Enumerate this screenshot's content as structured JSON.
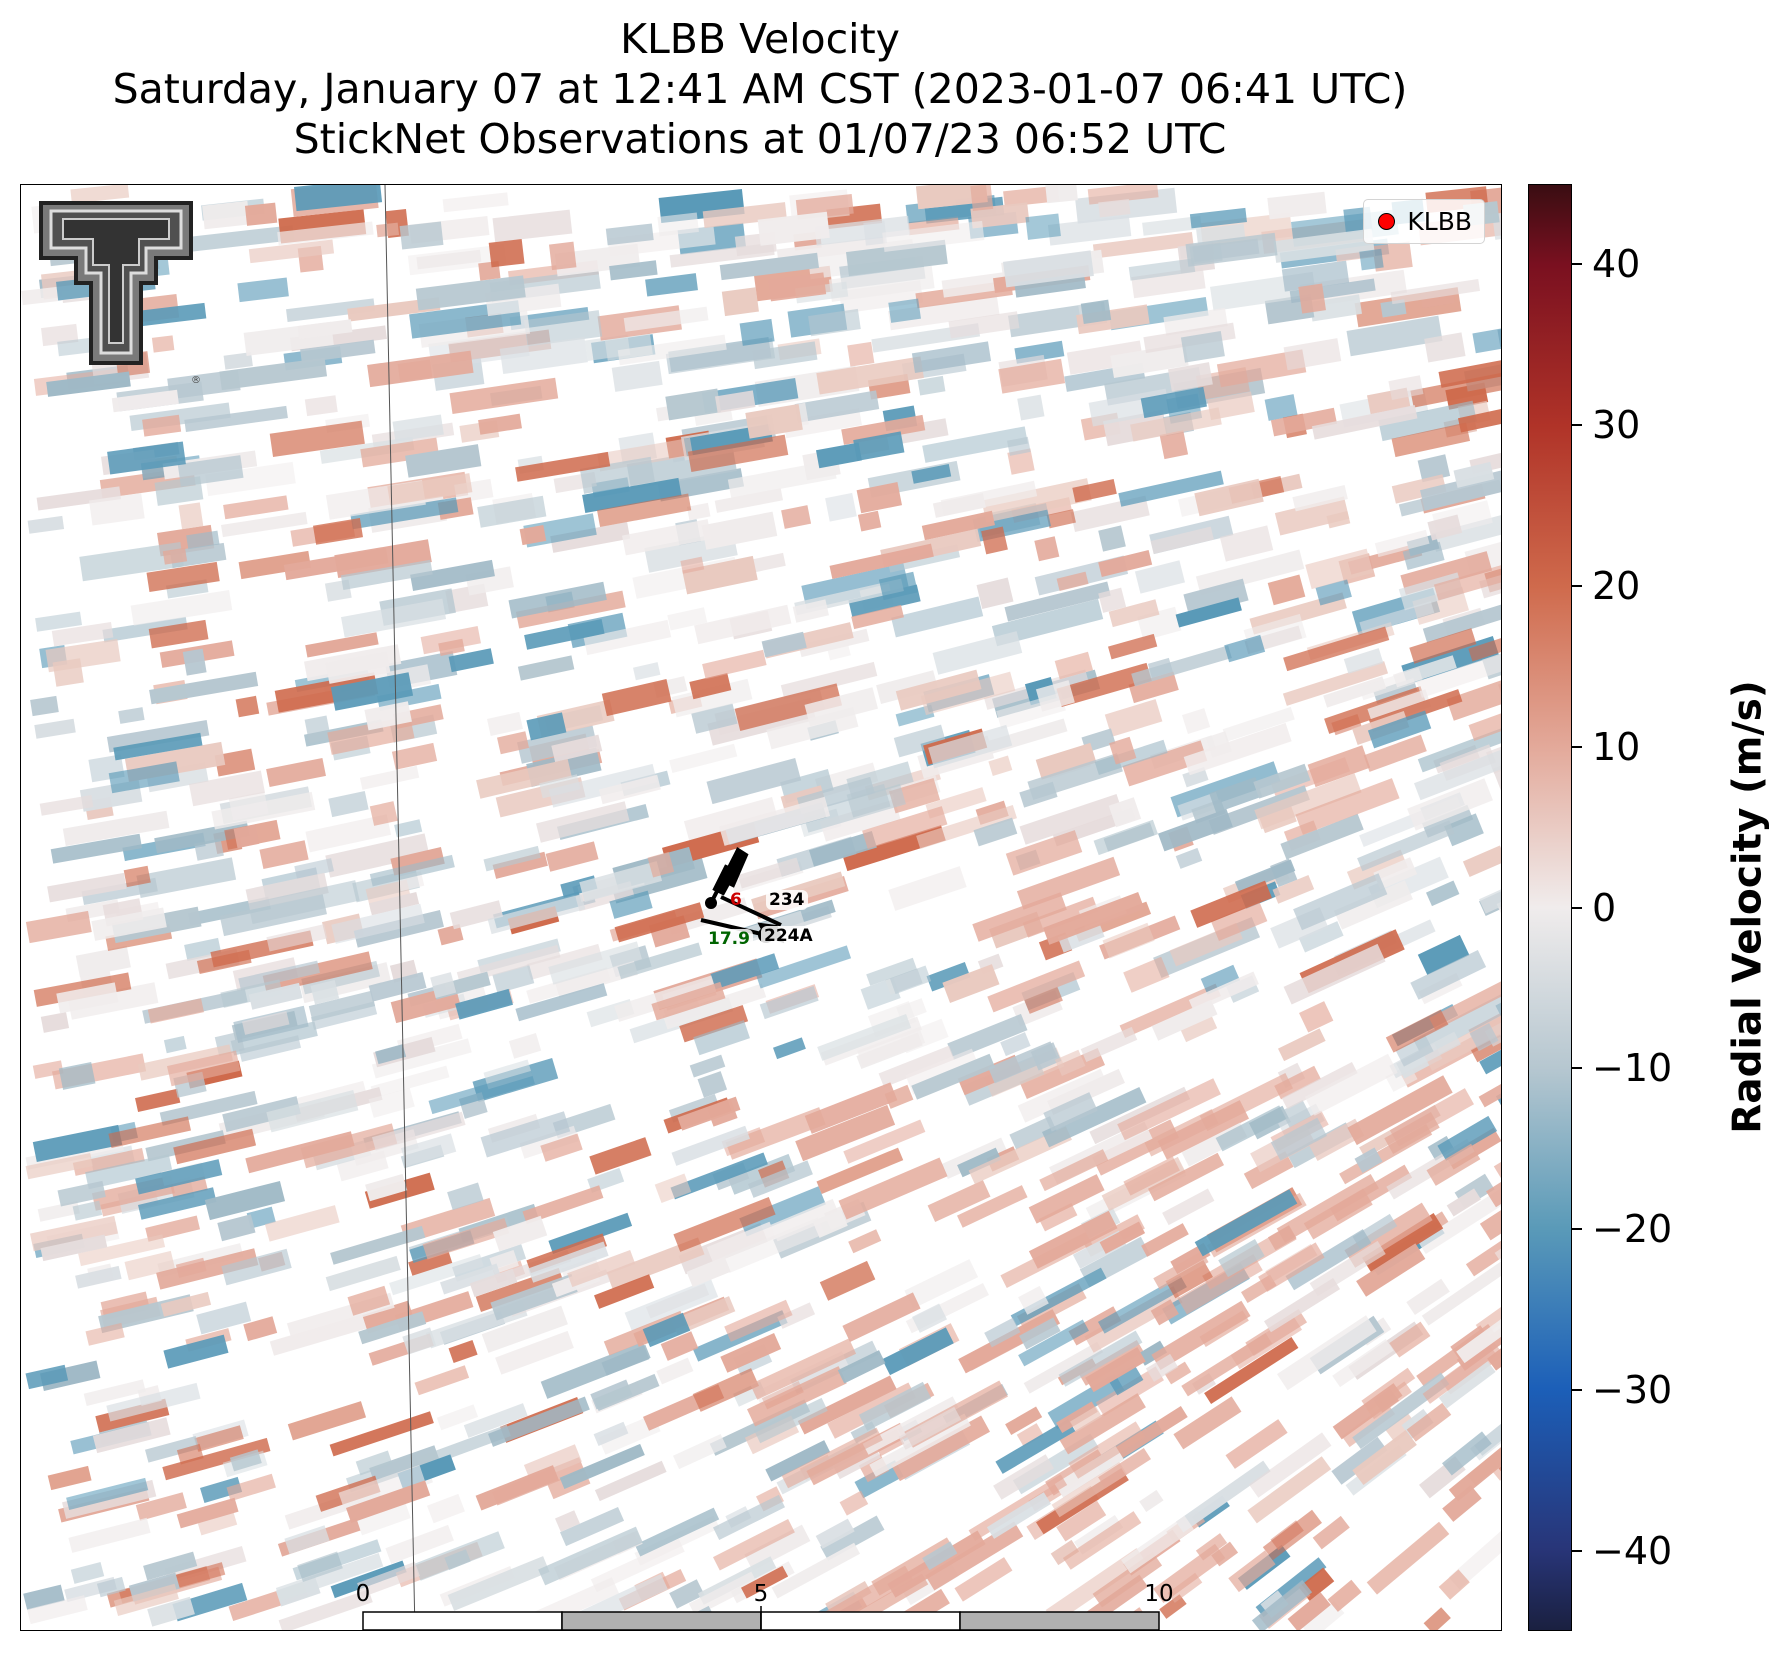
{
  "titles": {
    "line1": "KLBB Velocity",
    "line2": "Saturday, January 07 at 12:41 AM CST (2023-01-07 06:41 UTC)",
    "line3": "StickNet Observations at 01/07/23 06:52 UTC"
  },
  "legend": {
    "label": "KLBB",
    "marker_color": "#ff0000"
  },
  "logo": {
    "name": "Texas Tech Double T logo"
  },
  "stations": [
    {
      "id": "234",
      "value": "6",
      "value_color": "#cc0000"
    },
    {
      "id": "224A",
      "value": "17.9",
      "value_color": "#006400"
    }
  ],
  "scalebar": {
    "tick_labels": [
      "0",
      "5",
      "10"
    ],
    "unit": "km"
  },
  "colorbar": {
    "title": "Radial Velocity (m/s)",
    "range": [
      -45,
      45
    ],
    "ticks": [
      40,
      30,
      20,
      10,
      0,
      -10,
      -20,
      -30,
      -40
    ],
    "tick_labels": [
      "40",
      "30",
      "20",
      "10",
      "0",
      "−10",
      "−20",
      "−30",
      "−40"
    ],
    "colors": {
      "max": "#3a0d12",
      "pos_40": "#7a1020",
      "pos_30": "#b03328",
      "pos_20": "#cf6a4c",
      "pos_10": "#e3a99a",
      "zero": "#f0ecec",
      "neg_10": "#b6c7d0",
      "neg_20": "#5a9ab8",
      "neg_30": "#1c5fb8",
      "neg_40": "#283578",
      "min": "#1a2040"
    }
  }
}
